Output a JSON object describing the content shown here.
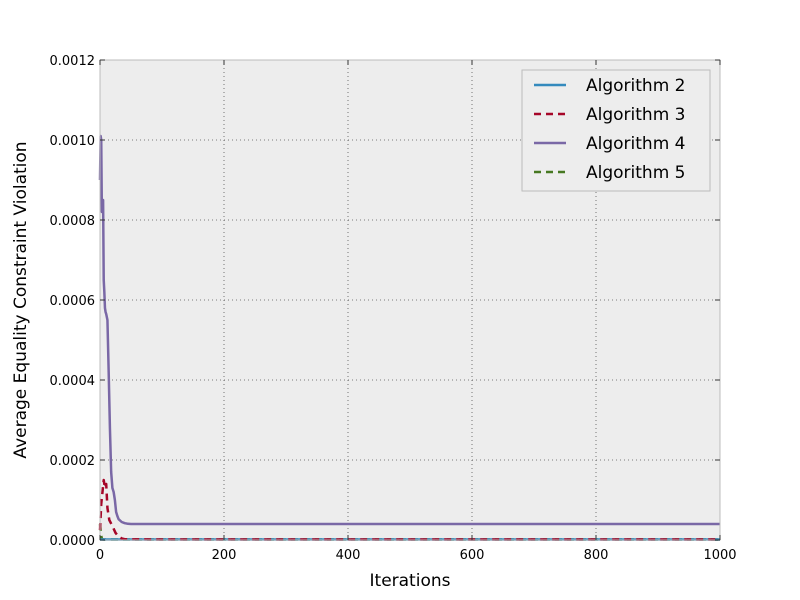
{
  "chart_data": {
    "type": "line",
    "title": "",
    "xlabel": "Iterations",
    "ylabel": "Average Equality Constraint Violation",
    "xlim": [
      0,
      1000
    ],
    "ylim": [
      0,
      0.0012
    ],
    "xticks": [
      0,
      200,
      400,
      600,
      800,
      1000
    ],
    "xtick_labels": [
      "0",
      "200",
      "400",
      "600",
      "800",
      "1000"
    ],
    "yticks": [
      0,
      0.0002,
      0.0004,
      0.0006,
      0.0008,
      0.001,
      0.0012
    ],
    "ytick_labels": [
      "0.0000",
      "0.0002",
      "0.0004",
      "0.0006",
      "0.0008",
      "0.0010",
      "0.0012"
    ],
    "grid": true,
    "legend_position": "top-right",
    "background_color": "#ededed",
    "series": [
      {
        "name": "Algorithm 2",
        "color": "#348abd",
        "style": "solid",
        "x": [
          0,
          2,
          5,
          10,
          20,
          40,
          100,
          1000
        ],
        "y": [
          5e-07,
          3e-07,
          2e-07,
          1e-07,
          5e-08,
          2e-08,
          1e-08,
          1e-08
        ]
      },
      {
        "name": "Algorithm 3",
        "color": "#a60628",
        "style": "dashed",
        "x": [
          0,
          2,
          4,
          6,
          8,
          10,
          12,
          15,
          20,
          25,
          30,
          35,
          40,
          60,
          100,
          1000
        ],
        "y": [
          2.5e-05,
          9e-05,
          0.00012,
          0.00015,
          0.00013,
          0.00014,
          8e-05,
          5e-05,
          3.5e-05,
          1.8e-05,
          8e-06,
          4e-06,
          2e-06,
          1.5e-06,
          1.2e-06,
          1e-06
        ]
      },
      {
        "name": "Algorithm 4",
        "color": "#7a68a6",
        "style": "solid",
        "x": [
          0,
          1,
          2,
          3,
          4,
          5,
          6,
          7,
          8,
          9,
          10,
          12,
          14,
          16,
          18,
          20,
          22,
          24,
          26,
          28,
          30,
          35,
          40,
          45,
          50,
          60,
          80,
          100,
          200,
          400,
          600,
          800,
          1000
        ],
        "y": [
          0.0009,
          0.00101,
          0.001,
          0.00082,
          0.00084,
          0.00085,
          0.00065,
          0.00062,
          0.00058,
          0.00057,
          0.000565,
          0.00055,
          0.00042,
          0.00028,
          0.00017,
          0.00013,
          0.00012,
          0.0001,
          7e-05,
          6e-05,
          5.2e-05,
          4.5e-05,
          4.2e-05,
          4.05e-05,
          4e-05,
          4e-05,
          4e-05,
          4e-05,
          4e-05,
          4e-05,
          4e-05,
          4e-05,
          4e-05
        ]
      },
      {
        "name": "Algorithm 5",
        "color": "#467821",
        "style": "dashed",
        "x": [
          0,
          1,
          2,
          3,
          5,
          8,
          12,
          20,
          40,
          100,
          1000
        ],
        "y": [
          4e-05,
          2.2e-05,
          1e-05,
          4e-06,
          1.5e-06,
          6e-07,
          3e-07,
          2e-07,
          1e-07,
          1e-07,
          1e-07
        ]
      }
    ]
  }
}
